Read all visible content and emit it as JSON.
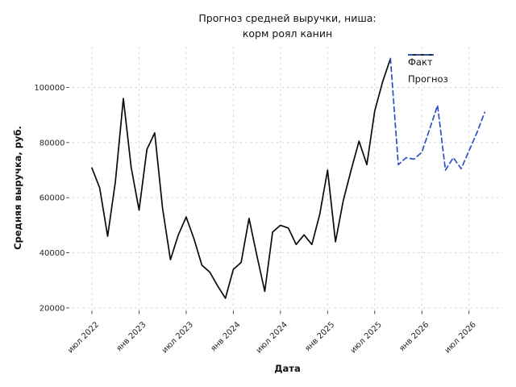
{
  "title_block": {
    "line1": "Прогноз средней выручки, ниша:",
    "line2": "корм роял канин"
  },
  "chart_data": {
    "type": "line",
    "title": "Прогноз средней выручки, ниша: корм роял канин",
    "xlabel": "Дата",
    "ylabel": "Средняя выручка, руб.",
    "grid": true,
    "grid_style": "dashed",
    "legend_position": "upper right",
    "ylim": [
      18900,
      114800
    ],
    "yticks": [
      20000,
      40000,
      60000,
      80000,
      100000
    ],
    "xticks": [
      {
        "label": "июл 2022",
        "month": "2022-07"
      },
      {
        "label": "янв 2023",
        "month": "2023-01"
      },
      {
        "label": "июл 2023",
        "month": "2023-07"
      },
      {
        "label": "янв 2024",
        "month": "2024-01"
      },
      {
        "label": "июл 2024",
        "month": "2024-07"
      },
      {
        "label": "янв 2025",
        "month": "2025-01"
      },
      {
        "label": "июл 2025",
        "month": "2025-07"
      },
      {
        "label": "янв 2026",
        "month": "2026-01"
      },
      {
        "label": "июл 2026",
        "month": "2026-07"
      }
    ],
    "series": [
      {
        "name": "Факт",
        "style": "solid",
        "color": "#0a0a0a",
        "x": [
          "2022-07",
          "2022-08",
          "2022-09",
          "2022-10",
          "2022-11",
          "2022-12",
          "2023-01",
          "2023-02",
          "2023-03",
          "2023-04",
          "2023-05",
          "2023-06",
          "2023-07",
          "2023-08",
          "2023-09",
          "2023-10",
          "2023-11",
          "2023-12",
          "2024-01",
          "2024-02",
          "2024-03",
          "2024-04",
          "2024-05",
          "2024-06",
          "2024-07",
          "2024-08",
          "2024-09",
          "2024-10",
          "2024-11",
          "2024-12",
          "2025-01",
          "2025-02",
          "2025-03",
          "2025-04",
          "2025-05",
          "2025-06",
          "2025-07",
          "2025-08",
          "2025-09"
        ],
        "values": [
          70800,
          63500,
          46000,
          66000,
          96000,
          71000,
          55500,
          77500,
          83500,
          56000,
          37500,
          46500,
          53000,
          45000,
          35500,
          33000,
          28000,
          23500,
          34000,
          36500,
          52500,
          39000,
          26000,
          47500,
          50000,
          49000,
          43000,
          46500,
          43000,
          54000,
          70000,
          44000,
          59000,
          70000,
          80500,
          72000,
          91500,
          102000,
          110500
        ]
      },
      {
        "name": "Прогноз",
        "style": "dashed",
        "color": "#2d51c4",
        "x": [
          "2025-09",
          "2025-10",
          "2025-11",
          "2025-12",
          "2026-01",
          "2026-02",
          "2026-03",
          "2026-04",
          "2026-05",
          "2026-06",
          "2026-07",
          "2026-08",
          "2026-09"
        ],
        "values": [
          110500,
          72000,
          74500,
          74000,
          76500,
          85000,
          93500,
          70000,
          74500,
          70500,
          77000,
          83500,
          91000
        ]
      }
    ]
  }
}
